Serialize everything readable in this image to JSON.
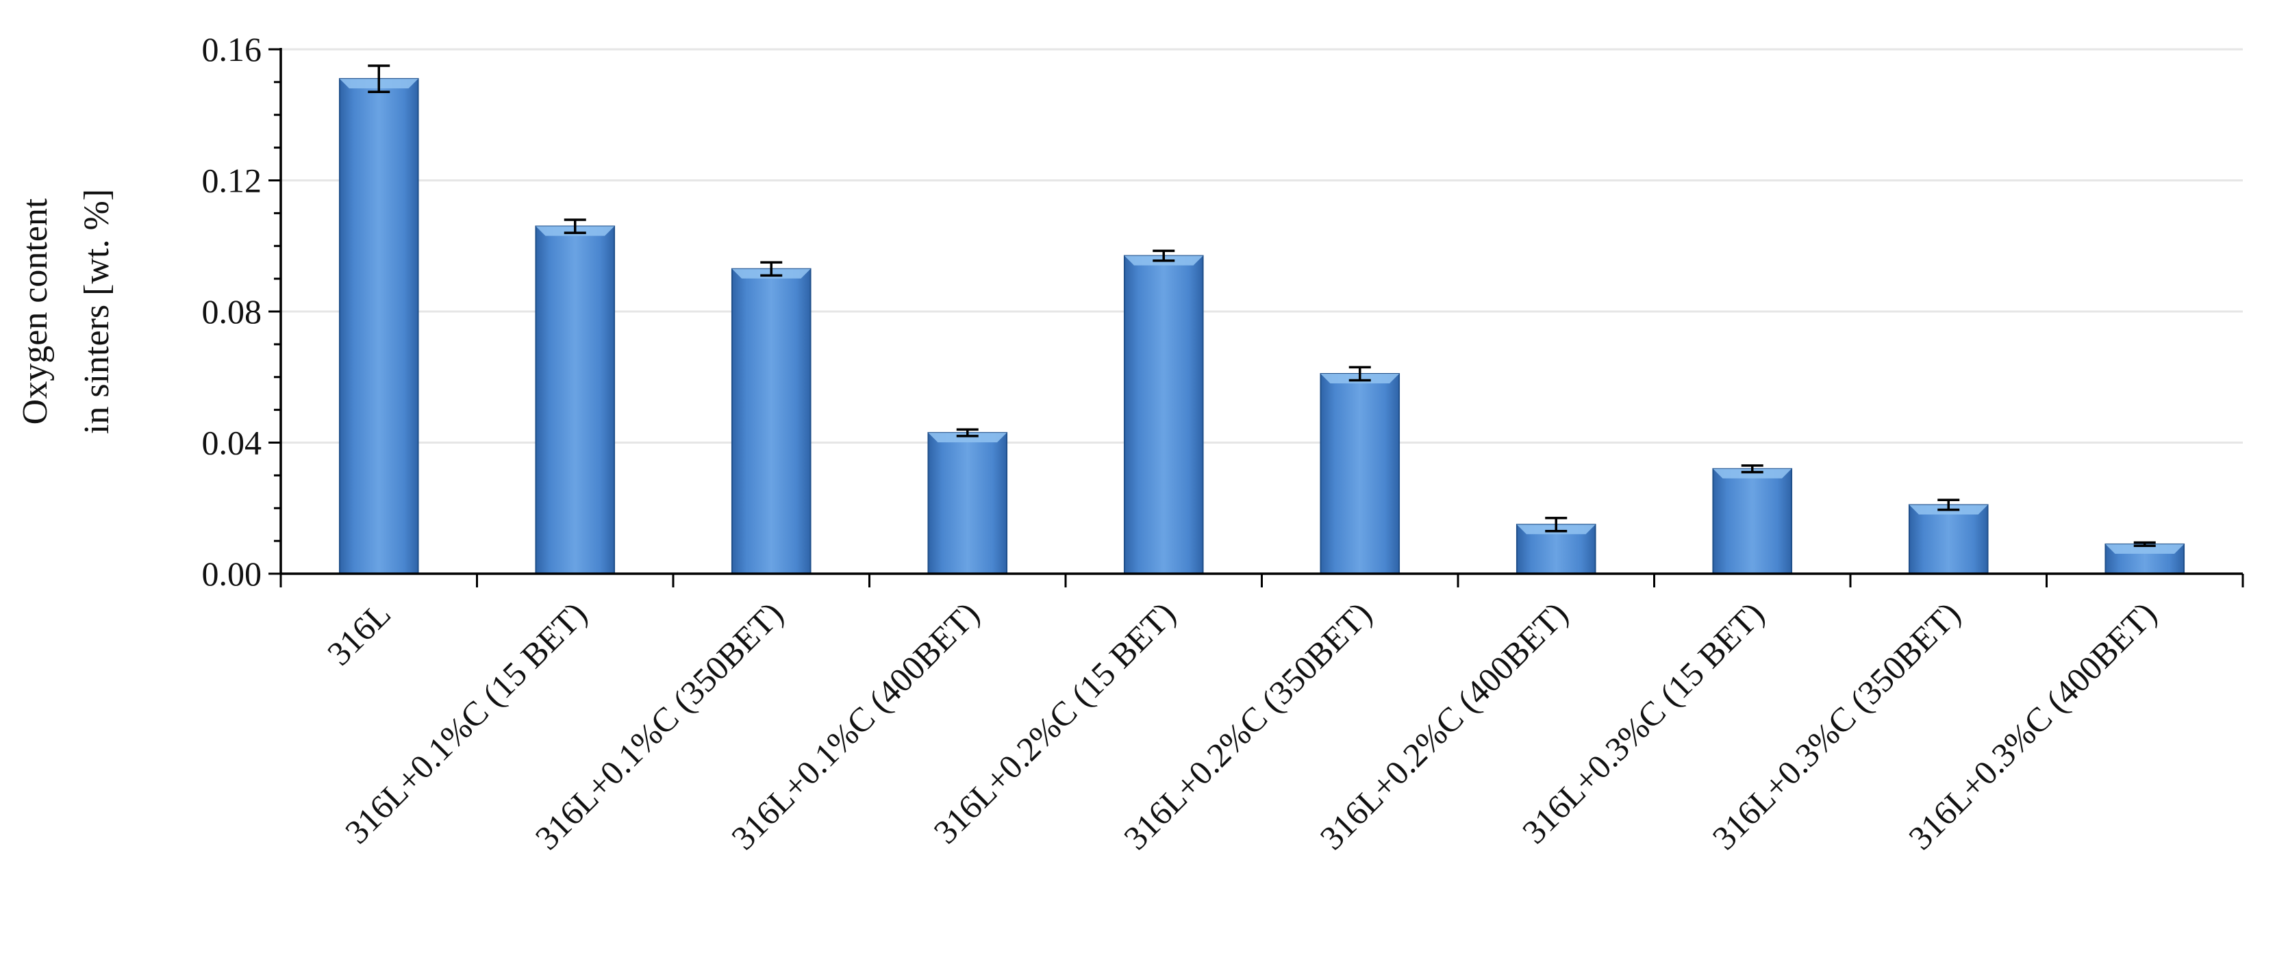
{
  "chart_data": {
    "type": "bar",
    "title": "",
    "xlabel": "",
    "ylabel": [
      "Oxygen content",
      "in sinters [wt. %]"
    ],
    "ylim": [
      0,
      0.16
    ],
    "yticks": [
      "0.00",
      "0.04",
      "0.08",
      "0.12",
      "0.16"
    ],
    "minor_ticks_per_major": 4,
    "grid": "horizontal",
    "legend": "none",
    "bar_color": "#4a86cf",
    "bar_edge_color": "#1f4f8a",
    "bar_top_color": "#8ec0ef",
    "error_bar_color": "#000000",
    "categories": [
      "316L",
      "316L+0.1%C (15 BET)",
      "316L+0.1%C (350BET)",
      "316L+0.1%C (400BET)",
      "316L+0.2%C (15 BET)",
      "316L+0.2%C (350BET)",
      "316L+0.2%C (400BET)",
      "316L+0.3%C (15 BET)",
      "316L+0.3%C (350BET)",
      "316L+0.3%C (400BET)"
    ],
    "values": [
      0.151,
      0.106,
      0.093,
      0.043,
      0.097,
      0.061,
      0.015,
      0.032,
      0.021,
      0.009
    ],
    "errors": [
      0.004,
      0.002,
      0.002,
      0.001,
      0.0015,
      0.002,
      0.002,
      0.001,
      0.0015,
      0.0005
    ]
  }
}
